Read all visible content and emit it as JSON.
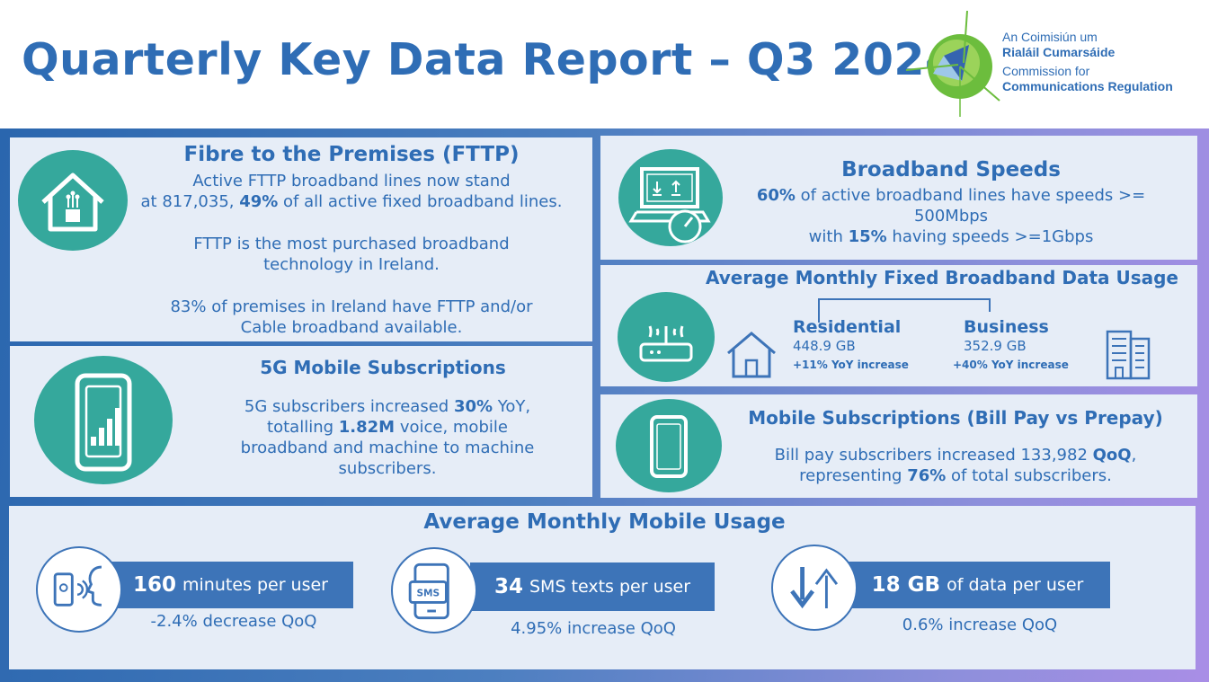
{
  "header": {
    "title": "Quarterly Key Data Report – Q3 2024",
    "logo_line1": "An Coimisiún um",
    "logo_line2": "Rialáil Cumarsáide",
    "logo_line3": "Commission for",
    "logo_line4": "Communications Regulation"
  },
  "fttp": {
    "title": "Fibre to the Premises (FTTP)",
    "line1": "Active FTTP broadband lines now stand",
    "line2_a": "at 817,035, ",
    "line2_b": "49%",
    "line2_c": " of all active fixed broadband lines.",
    "line3": "FTTP is the most purchased broadband",
    "line4": "technology in Ireland.",
    "line5": "83% of premises in Ireland have FTTP and/or",
    "line6": "Cable broadband available."
  },
  "fiveg": {
    "title": "5G Mobile Subscriptions",
    "line1_a": "5G subscribers increased ",
    "line1_b": "30%",
    "line1_c": " YoY,",
    "line2_a": "totalling ",
    "line2_b": "1.82M",
    "line2_c": " voice, mobile",
    "line3": "broadband and machine to machine",
    "line4": "subscribers."
  },
  "speeds": {
    "title": "Broadband Speeds",
    "line1_a": "60%",
    "line1_b": " of active broadband lines have speeds >=",
    "line2": "500Mbps",
    "line3_a": "with ",
    "line3_b": "15%",
    "line3_c": " having speeds >=1Gbps"
  },
  "fixed_usage": {
    "title": "Average Monthly Fixed Broadband Data Usage",
    "residential_label": "Residential",
    "residential_value": "448.9 GB",
    "residential_change": "+11% YoY increase",
    "business_label": "Business",
    "business_value": "352.9 GB",
    "business_change": "+40% YoY increase"
  },
  "mobile_subs": {
    "title": "Mobile Subscriptions (Bill Pay vs Prepay)",
    "line1_a": "Bill pay subscribers increased 133,982 ",
    "line1_b": "QoQ",
    "line1_c": ",",
    "line2_a": "representing ",
    "line2_b": "76%",
    "line2_c": " of total subscribers."
  },
  "mobile_usage": {
    "title": "Average Monthly Mobile Usage",
    "minutes_value": "160",
    "minutes_label": "minutes per user",
    "minutes_change": "-2.4% decrease QoQ",
    "sms_value": "34",
    "sms_label": "SMS texts per user",
    "sms_change": "4.95% increase QoQ",
    "data_value": "18 GB",
    "data_label": "of data per user",
    "data_change": "0.6% increase QoQ"
  },
  "icons": [
    "house-network-icon",
    "smartphone-signal-icon",
    "laptop-speedometer-icon",
    "wifi-router-icon",
    "house-icon",
    "office-building-icon",
    "mobile-phone-icon",
    "phone-voice-icon",
    "sms-phone-icon",
    "data-transfer-icon"
  ],
  "colors": {
    "title_blue": "#2f6db5",
    "teal": "#35a89c",
    "panel": "#e6edf7",
    "stat_box": "#3d74b8"
  }
}
